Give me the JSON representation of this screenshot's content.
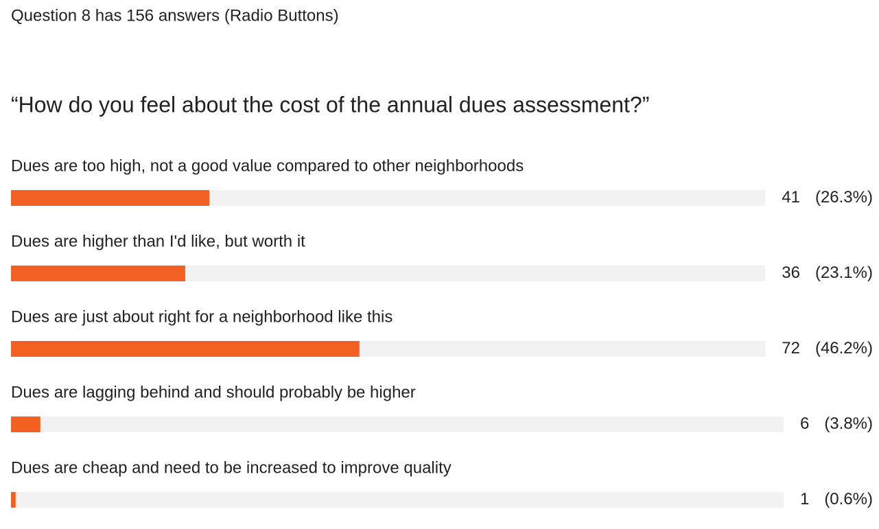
{
  "chart_data": {
    "type": "bar",
    "header": "Question 8 has 156 answers (Radio Buttons)",
    "title": "“How do you feel about the cost of the annual dues assessment?”",
    "categories": [
      "Dues are too high, not a good value compared to other neighborhoods",
      "Dues are higher than I'd like, but worth it",
      "Dues are just about right for a neighborhood like this",
      "Dues are lagging behind and should probably be higher",
      "Dues are cheap and need to be increased to improve quality"
    ],
    "values": [
      41,
      36,
      72,
      6,
      1
    ],
    "percentages": [
      26.3,
      23.1,
      46.2,
      3.8,
      0.6
    ],
    "percentage_labels": [
      "(26.3%)",
      "(23.1%)",
      "(46.2%)",
      "(3.8%)",
      "(0.6%)"
    ],
    "xlim": [
      0,
      100
    ],
    "color": "#f26122",
    "track_color": "#f2f2f2"
  }
}
